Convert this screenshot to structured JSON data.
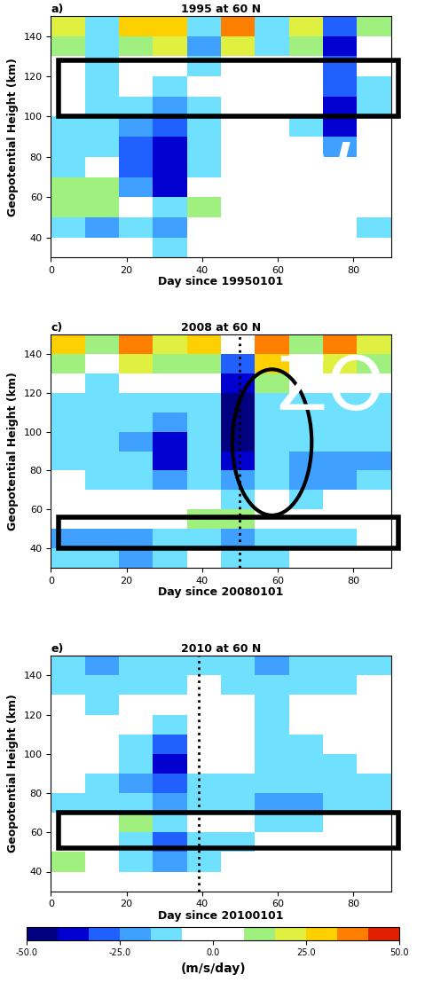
{
  "chart_data": [
    {
      "type": "heatmap",
      "label": "a)",
      "title": "1995 at 60 N",
      "xlabel": "Day since 19950101",
      "ylabel": "Geopotential Height (km)",
      "xlim": [
        0,
        90
      ],
      "ylim": [
        30,
        150
      ],
      "xticks": [
        0,
        20,
        40,
        60,
        80
      ],
      "yticks": [
        40,
        60,
        80,
        100,
        120,
        140
      ],
      "x_edges": [
        0,
        9,
        18,
        27,
        36,
        45,
        54,
        63,
        72,
        81,
        90
      ],
      "y_edges": [
        30,
        40,
        50,
        60,
        70,
        80,
        90,
        100,
        110,
        120,
        130,
        140,
        150
      ],
      "cells": [
        [
          0,
          0,
          0,
          -10,
          0,
          0,
          0,
          0,
          0,
          0
        ],
        [
          -15,
          -20,
          -10,
          -20,
          0,
          0,
          0,
          0,
          0,
          -10
        ],
        [
          15,
          10,
          5,
          -10,
          10,
          5,
          0,
          5,
          0,
          0
        ],
        [
          10,
          10,
          -20,
          -35,
          -5,
          5,
          0,
          0,
          0,
          0
        ],
        [
          -10,
          -5,
          -30,
          -40,
          -15,
          0,
          0,
          0,
          -5,
          0
        ],
        [
          -15,
          -10,
          -30,
          -35,
          -15,
          0,
          0,
          -5,
          -20,
          0
        ],
        [
          -10,
          -10,
          -25,
          -30,
          -10,
          0,
          0,
          -10,
          -40,
          -5
        ],
        [
          -5,
          -15,
          -10,
          -20,
          -10,
          0,
          0,
          -5,
          -35,
          -10
        ],
        [
          -5,
          -10,
          -5,
          -10,
          -5,
          0,
          -5,
          -5,
          -30,
          -10
        ],
        [
          0,
          -10,
          0,
          5,
          -10,
          5,
          -5,
          0,
          -30,
          0
        ],
        [
          10,
          -15,
          15,
          20,
          -20,
          20,
          -10,
          10,
          -35,
          5
        ],
        [
          20,
          -10,
          25,
          30,
          -15,
          35,
          -10,
          20,
          -30,
          10
        ]
      ],
      "boxes": [
        {
          "x": [
            2,
            92
          ],
          "y": [
            100,
            128
          ]
        }
      ],
      "ellipses": [],
      "vline": null,
      "annotations": [
        {
          "text": "W",
          "x": 70,
          "y": 71
        }
      ]
    },
    {
      "type": "heatmap",
      "label": "c)",
      "title": "2008 at 60 N",
      "xlabel": "Day since 20080101",
      "ylabel": "Geopotential Height (km)",
      "xlim": [
        0,
        90
      ],
      "ylim": [
        30,
        150
      ],
      "xticks": [
        0,
        20,
        40,
        60,
        80
      ],
      "yticks": [
        40,
        60,
        80,
        100,
        120,
        140
      ],
      "x_edges": [
        0,
        9,
        18,
        27,
        36,
        45,
        54,
        63,
        72,
        81,
        90
      ],
      "y_edges": [
        30,
        40,
        50,
        60,
        70,
        80,
        90,
        100,
        110,
        120,
        130,
        140,
        150
      ],
      "cells": [
        [
          -15,
          -15,
          -20,
          -10,
          -5,
          -10,
          -10,
          -5,
          -5,
          0
        ],
        [
          -20,
          -25,
          -25,
          -15,
          -15,
          -25,
          -10,
          -10,
          -15,
          -5
        ],
        [
          0,
          5,
          0,
          0,
          10,
          10,
          5,
          0,
          0,
          5
        ],
        [
          5,
          0,
          0,
          -5,
          5,
          -10,
          -5,
          -10,
          -5,
          -5
        ],
        [
          -5,
          -10,
          -15,
          -20,
          -10,
          -25,
          -15,
          -20,
          -20,
          -15
        ],
        [
          -10,
          -15,
          -15,
          -40,
          -10,
          -35,
          -15,
          -20,
          -25,
          -20
        ],
        [
          -10,
          -10,
          -20,
          -40,
          -10,
          -50,
          -10,
          -15,
          -10,
          -15
        ],
        [
          -15,
          -10,
          -15,
          -25,
          -10,
          -50,
          -15,
          -10,
          -10,
          -10
        ],
        [
          -10,
          -15,
          -10,
          -15,
          -10,
          -45,
          -10,
          -15,
          -10,
          -10
        ],
        [
          0,
          -10,
          5,
          0,
          5,
          -35,
          10,
          0,
          5,
          0
        ],
        [
          15,
          0,
          20,
          10,
          15,
          -30,
          25,
          5,
          20,
          10
        ],
        [
          30,
          10,
          35,
          20,
          30,
          5,
          40,
          15,
          35,
          20
        ]
      ],
      "boxes": [
        {
          "x": [
            2,
            92
          ],
          "y": [
            40,
            56
          ]
        }
      ],
      "ellipses": [
        {
          "x": 58.5,
          "y": 94.5,
          "width": 21,
          "height": 75
        }
      ],
      "vline": 50,
      "annotations": [
        {
          "text": "ZO",
          "x": 74,
          "y": 122
        }
      ]
    },
    {
      "type": "heatmap",
      "label": "e)",
      "title": "2010 at 60 N",
      "xlabel": "Day since 20100101",
      "ylabel": "Geopotential Height (km)",
      "xlim": [
        0,
        90
      ],
      "ylim": [
        30,
        150
      ],
      "xticks": [
        0,
        20,
        40,
        60,
        80
      ],
      "yticks": [
        40,
        60,
        80,
        100,
        120,
        140
      ],
      "x_edges": [
        0,
        9,
        18,
        27,
        36,
        45,
        54,
        63,
        72,
        81,
        90
      ],
      "y_edges": [
        30,
        40,
        50,
        60,
        70,
        80,
        90,
        100,
        110,
        120,
        130,
        140,
        150
      ],
      "cells": [
        [
          0,
          0,
          0,
          -5,
          0,
          0,
          0,
          0,
          0,
          0
        ],
        [
          10,
          5,
          -10,
          -25,
          -10,
          0,
          0,
          0,
          -5,
          0
        ],
        [
          0,
          0,
          -15,
          -30,
          -10,
          -10,
          -5,
          -5,
          -5,
          0
        ],
        [
          5,
          5,
          10,
          -10,
          0,
          -5,
          -10,
          -10,
          -5,
          -5
        ],
        [
          -10,
          -10,
          -15,
          -25,
          -10,
          -15,
          -20,
          -25,
          -15,
          -10
        ],
        [
          -5,
          -10,
          -20,
          -30,
          -10,
          -10,
          -15,
          -15,
          -15,
          -10
        ],
        [
          0,
          -5,
          -15,
          -35,
          -5,
          -5,
          -15,
          -15,
          -10,
          -5
        ],
        [
          0,
          -5,
          -10,
          -30,
          0,
          0,
          -10,
          -10,
          -5,
          -5
        ],
        [
          0,
          -5,
          -5,
          -10,
          0,
          0,
          -10,
          -5,
          -5,
          0
        ],
        [
          -5,
          -10,
          -5,
          -5,
          -5,
          -5,
          -10,
          -5,
          -5,
          -5
        ],
        [
          -10,
          -15,
          -10,
          -10,
          -5,
          -10,
          -15,
          -10,
          -10,
          -5
        ],
        [
          -15,
          -20,
          -10,
          -15,
          -10,
          -15,
          -20,
          -15,
          -15,
          -10
        ]
      ],
      "boxes": [
        {
          "x": [
            2,
            92
          ],
          "y": [
            52,
            70
          ]
        }
      ],
      "ellipses": [],
      "vline": 39,
      "annotations": []
    }
  ],
  "colorbar": {
    "range": [
      -50,
      50
    ],
    "ticks": [
      {
        "value": -50,
        "label": "-50.0"
      },
      {
        "value": -25,
        "label": "-25.0"
      },
      {
        "value": 0,
        "label": "0.0"
      },
      {
        "value": 25,
        "label": "25.0"
      },
      {
        "value": 50,
        "label": "50.0"
      }
    ],
    "label": "(m/s/day)"
  }
}
